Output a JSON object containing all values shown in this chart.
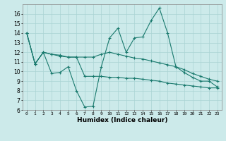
{
  "xlabel": "Humidex (Indice chaleur)",
  "x": [
    0,
    1,
    2,
    3,
    4,
    5,
    6,
    7,
    8,
    9,
    10,
    11,
    12,
    13,
    14,
    15,
    16,
    17,
    18,
    19,
    20,
    21,
    22,
    23
  ],
  "line1": [
    14.0,
    10.8,
    12.0,
    9.8,
    9.9,
    10.5,
    8.0,
    6.3,
    6.4,
    10.5,
    13.5,
    14.5,
    12.0,
    13.5,
    13.6,
    15.3,
    16.6,
    14.0,
    10.5,
    9.9,
    9.4,
    9.0,
    9.0,
    8.4
  ],
  "line2": [
    14.0,
    10.8,
    12.0,
    11.8,
    11.7,
    11.5,
    11.5,
    11.5,
    11.5,
    11.8,
    12.0,
    11.8,
    11.6,
    11.4,
    11.3,
    11.1,
    10.9,
    10.7,
    10.5,
    10.2,
    9.8,
    9.5,
    9.2,
    9.0
  ],
  "line3": [
    14.0,
    10.8,
    12.0,
    11.8,
    11.6,
    11.5,
    11.5,
    9.5,
    9.5,
    9.5,
    9.4,
    9.4,
    9.3,
    9.3,
    9.2,
    9.1,
    9.0,
    8.8,
    8.7,
    8.6,
    8.5,
    8.4,
    8.3,
    8.3
  ],
  "color": "#1a7a6e",
  "bg_color": "#cceaea",
  "ylim": [
    6,
    17
  ],
  "yticks": [
    6,
    7,
    8,
    9,
    10,
    11,
    12,
    13,
    14,
    15,
    16
  ],
  "xlim": [
    -0.5,
    23.5
  ],
  "grid_color": "#aad4d4"
}
